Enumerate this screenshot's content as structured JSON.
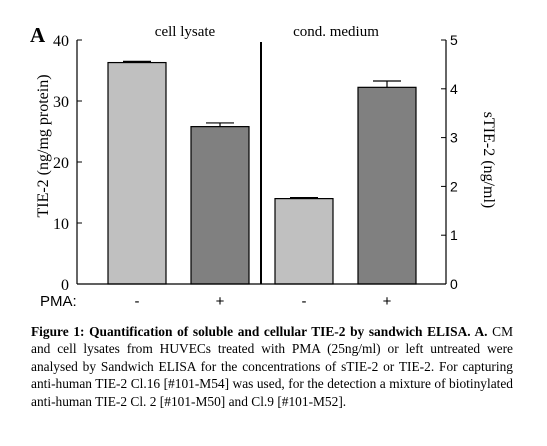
{
  "chart_data": {
    "type": "bar",
    "panel_label": "A",
    "groups": [
      {
        "label": "cell lysate",
        "axis": "left"
      },
      {
        "label": "cond. medium",
        "axis": "right"
      }
    ],
    "left_axis": {
      "label": "TIE-2 (ng/mg protein)",
      "ylim": [
        0,
        40
      ],
      "ticks": [
        "0",
        "10",
        "20",
        "30",
        "40"
      ]
    },
    "right_axis": {
      "label": "sTIE-2 (ng/ml)",
      "ylim": [
        0,
        5
      ],
      "ticks": [
        "0",
        "1",
        "2",
        "3",
        "4",
        "5"
      ]
    },
    "row_label": "PMA:",
    "bars": [
      {
        "group": "cell lysate",
        "pma": "-",
        "value": 36.3,
        "error": 0.2,
        "color": "#c0c0c0"
      },
      {
        "group": "cell lysate",
        "pma": "+",
        "value": 25.8,
        "error": 0.6,
        "color": "#808080"
      },
      {
        "group": "cond. medium",
        "pma": "-",
        "value": 1.75,
        "error": 0.02,
        "color": "#c0c0c0"
      },
      {
        "group": "cond. medium",
        "pma": "+",
        "value": 4.03,
        "error": 0.13,
        "color": "#808080"
      }
    ]
  },
  "caption": {
    "bold": "Figure 1: Quantification of soluble and cellular TIE-2 by sandwich ELISA. A.",
    "text": " CM and cell lysates from HUVECs treated with PMA (25ng/ml) or left untreated were analysed by Sandwich ELISA for the concentrations of sTIE-2 or TIE-2. For capturing anti-human TIE-2 Cl.16 [#101-M54] was used, for the detection a mixture of biotinylated anti-human TIE-2 Cl. 2 [#101-M50] and Cl.9 [#101-M52]."
  }
}
